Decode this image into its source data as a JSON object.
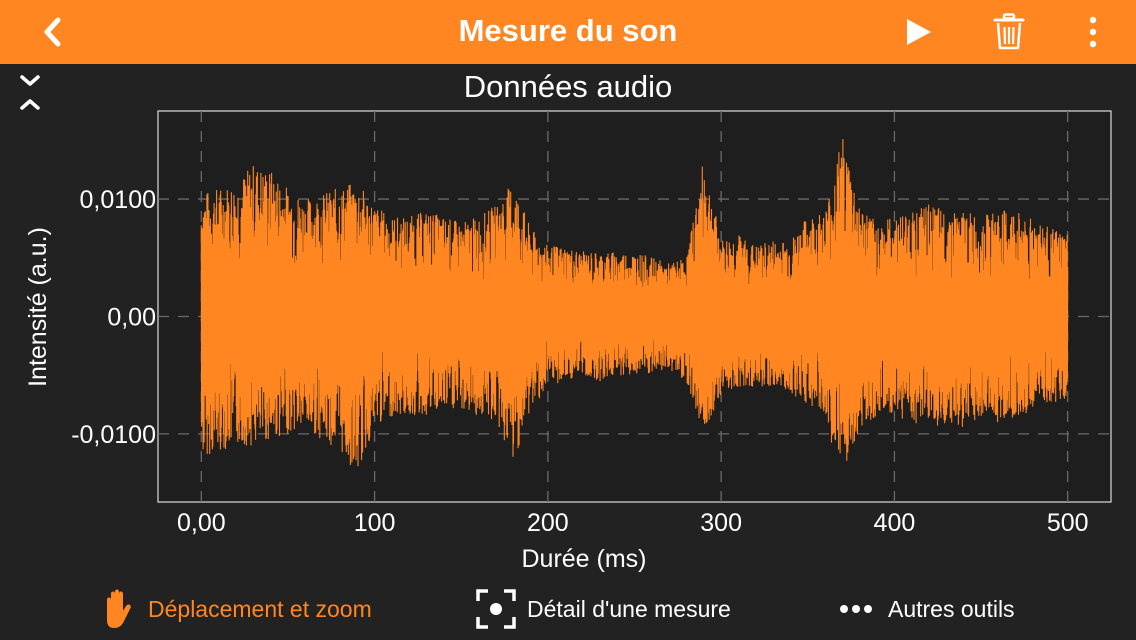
{
  "header": {
    "title": "Mesure du son",
    "back_icon": "chevron-left-icon",
    "play_icon": "play-icon",
    "delete_icon": "trash-icon",
    "menu_icon": "more-vertical-icon"
  },
  "colors": {
    "accent": "#ff8620",
    "background": "#222222",
    "plot_background": "#1e1e1e",
    "grid": "#6a6a6a",
    "text": "#ffffff"
  },
  "chart_data": {
    "type": "line",
    "title": "Données audio",
    "xlabel": "Durée (ms)",
    "ylabel": "Intensité (a.u.)",
    "xlim": [
      -25,
      525
    ],
    "ylim": [
      -0.0158,
      0.0175
    ],
    "x_ticks": [
      0,
      100,
      200,
      300,
      400,
      500
    ],
    "x_tick_labels": [
      "0,00",
      "100",
      "200",
      "300",
      "400",
      "500"
    ],
    "y_ticks": [
      -0.01,
      0,
      0.01
    ],
    "y_tick_labels": [
      "-0,0100",
      "0,00",
      "0,0100"
    ],
    "grid": true,
    "series": [
      {
        "color": "#ff8620",
        "x_range": [
          0,
          500
        ],
        "envelope_x": [
          0,
          10,
          20,
          30,
          40,
          50,
          60,
          70,
          80,
          90,
          100,
          110,
          120,
          130,
          140,
          150,
          160,
          170,
          180,
          190,
          200,
          210,
          220,
          230,
          240,
          250,
          260,
          270,
          280,
          290,
          300,
          310,
          320,
          330,
          340,
          350,
          360,
          370,
          380,
          390,
          400,
          410,
          420,
          430,
          440,
          450,
          460,
          470,
          480,
          490,
          500
        ],
        "envelope_max": [
          0.0105,
          0.011,
          0.0115,
          0.013,
          0.0125,
          0.011,
          0.01,
          0.0105,
          0.011,
          0.0115,
          0.0095,
          0.0085,
          0.0085,
          0.009,
          0.0085,
          0.008,
          0.0085,
          0.0095,
          0.0115,
          0.0075,
          0.006,
          0.006,
          0.0055,
          0.0055,
          0.0055,
          0.0055,
          0.005,
          0.0045,
          0.005,
          0.0135,
          0.0065,
          0.007,
          0.006,
          0.0065,
          0.0065,
          0.0085,
          0.009,
          0.0155,
          0.0095,
          0.008,
          0.0085,
          0.009,
          0.0095,
          0.009,
          0.009,
          0.0085,
          0.009,
          0.009,
          0.0085,
          0.0075,
          0.007
        ],
        "envelope_min": [
          -0.012,
          -0.0115,
          -0.011,
          -0.011,
          -0.0105,
          -0.01,
          -0.0095,
          -0.0105,
          -0.0115,
          -0.0135,
          -0.0095,
          -0.0085,
          -0.0085,
          -0.0085,
          -0.008,
          -0.008,
          -0.0085,
          -0.009,
          -0.0125,
          -0.008,
          -0.006,
          -0.0055,
          -0.005,
          -0.0055,
          -0.005,
          -0.005,
          -0.005,
          -0.0045,
          -0.0055,
          -0.01,
          -0.0065,
          -0.006,
          -0.006,
          -0.006,
          -0.0065,
          -0.0075,
          -0.0085,
          -0.0145,
          -0.0095,
          -0.0085,
          -0.0085,
          -0.009,
          -0.0095,
          -0.0095,
          -0.0095,
          -0.0085,
          -0.009,
          -0.0085,
          -0.008,
          -0.0075,
          -0.007
        ]
      }
    ]
  },
  "toolbar": {
    "items": [
      {
        "icon": "hand-icon",
        "label": "Déplacement et zoom",
        "active": true
      },
      {
        "icon": "focus-frame-icon",
        "label": "Détail d'une mesure",
        "active": false
      },
      {
        "icon": "more-horizontal-icon",
        "label": "Autres outils",
        "active": false
      }
    ]
  }
}
